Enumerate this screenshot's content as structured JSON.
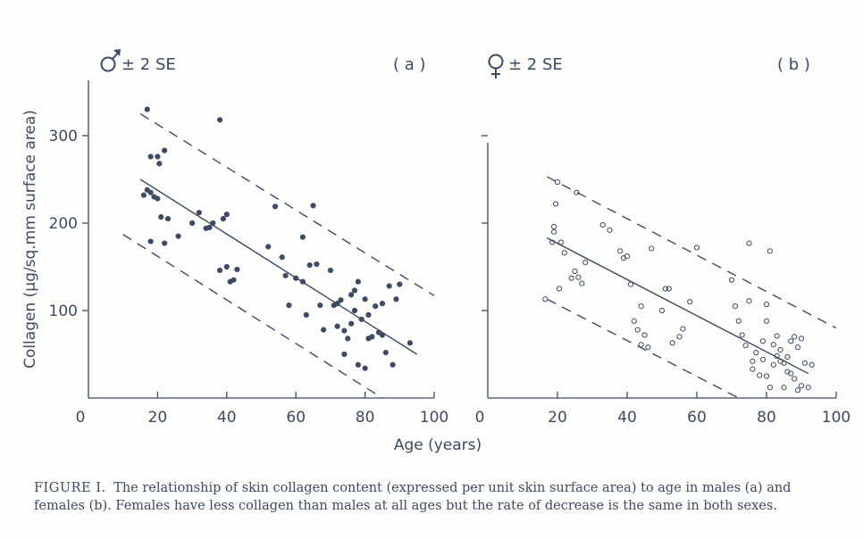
{
  "caption": {
    "lead": "FIGURE I.",
    "text": "The relationship of skin collagen content (expressed per unit skin surface area) to age in males (a) and females (b). Females have less collagen than males at all ages but the rate of decrease is the same in both sexes."
  },
  "colors": {
    "ink": "#3d4a63",
    "background": "#fdfdfb"
  },
  "chart_data": [
    {
      "type": "scatter",
      "panel_label": "( a )",
      "legend": "± 2 SE",
      "legend_symbol": "male-symbol",
      "marker": "filled-circle",
      "xlabel": "Age (years)",
      "ylabel": "Collagen (µg/sq.mm surface area)",
      "xlim": [
        0,
        100
      ],
      "ylim": [
        0,
        360
      ],
      "xticks": [
        0,
        20,
        40,
        60,
        80,
        100
      ],
      "yticks": [
        100,
        200,
        300
      ],
      "grid": false,
      "regression": {
        "x": [
          15,
          95
        ],
        "y": [
          250,
          50
        ]
      },
      "band_upper": {
        "x": [
          15,
          100
        ],
        "y": [
          325,
          117
        ]
      },
      "band_lower": {
        "x": [
          10,
          85
        ],
        "y": [
          187,
          0
        ]
      },
      "points": [
        [
          17,
          330
        ],
        [
          18,
          276
        ],
        [
          20,
          276
        ],
        [
          20.5,
          268
        ],
        [
          22,
          283
        ],
        [
          16,
          232
        ],
        [
          17,
          238
        ],
        [
          18,
          235
        ],
        [
          19,
          230
        ],
        [
          20,
          228
        ],
        [
          21,
          207
        ],
        [
          23,
          205
        ],
        [
          18,
          179
        ],
        [
          22,
          177
        ],
        [
          26,
          185
        ],
        [
          30,
          200
        ],
        [
          32,
          212
        ],
        [
          34,
          194
        ],
        [
          35,
          195
        ],
        [
          36,
          200
        ],
        [
          38,
          318
        ],
        [
          39,
          205
        ],
        [
          40,
          210
        ],
        [
          38,
          146
        ],
        [
          40,
          150
        ],
        [
          41,
          133
        ],
        [
          42,
          135
        ],
        [
          43,
          147
        ],
        [
          52,
          173
        ],
        [
          54,
          219
        ],
        [
          56,
          161
        ],
        [
          57,
          140
        ],
        [
          58,
          106
        ],
        [
          60,
          137
        ],
        [
          62,
          184
        ],
        [
          62,
          133
        ],
        [
          63,
          95
        ],
        [
          64,
          152
        ],
        [
          65,
          220
        ],
        [
          66,
          153
        ],
        [
          67,
          106
        ],
        [
          68,
          78
        ],
        [
          70,
          146
        ],
        [
          71,
          106
        ],
        [
          72,
          108
        ],
        [
          72,
          82
        ],
        [
          73,
          112
        ],
        [
          74,
          77
        ],
        [
          74,
          50
        ],
        [
          75,
          68
        ],
        [
          76,
          85
        ],
        [
          76,
          118
        ],
        [
          77,
          123
        ],
        [
          77,
          100
        ],
        [
          78,
          133
        ],
        [
          78,
          38
        ],
        [
          79,
          90
        ],
        [
          80,
          113
        ],
        [
          80,
          34
        ],
        [
          81,
          68
        ],
        [
          81,
          95
        ],
        [
          82,
          70
        ],
        [
          83,
          105
        ],
        [
          84,
          75
        ],
        [
          85,
          108
        ],
        [
          85,
          72
        ],
        [
          86,
          52
        ],
        [
          87,
          128
        ],
        [
          88,
          38
        ],
        [
          89,
          113
        ],
        [
          90,
          130
        ],
        [
          93,
          63
        ]
      ]
    },
    {
      "type": "scatter",
      "panel_label": "( b )",
      "legend": "± 2 SE",
      "legend_symbol": "female-symbol",
      "marker": "open-circle",
      "xlabel": "Age (years)",
      "ylabel": "",
      "xlim": [
        0,
        100
      ],
      "ylim": [
        0,
        360
      ],
      "xticks": [
        0,
        20,
        40,
        60,
        80,
        100
      ],
      "yticks": [
        100,
        200,
        300
      ],
      "grid": false,
      "regression": {
        "x": [
          17,
          92
        ],
        "y": [
          183,
          28
        ]
      },
      "band_upper": {
        "x": [
          17,
          100
        ],
        "y": [
          253,
          80
        ]
      },
      "band_lower": {
        "x": [
          17,
          72
        ],
        "y": [
          113,
          0
        ]
      },
      "points": [
        [
          16.5,
          113
        ],
        [
          18.5,
          178
        ],
        [
          19,
          196
        ],
        [
          19,
          190
        ],
        [
          19.5,
          222
        ],
        [
          20,
          247
        ],
        [
          21,
          178
        ],
        [
          20.5,
          125
        ],
        [
          22,
          166
        ],
        [
          24,
          137
        ],
        [
          25,
          145
        ],
        [
          25.5,
          235
        ],
        [
          26,
          138
        ],
        [
          27,
          131
        ],
        [
          28,
          155
        ],
        [
          33,
          198
        ],
        [
          35,
          192
        ],
        [
          38,
          168
        ],
        [
          39,
          160
        ],
        [
          40,
          162
        ],
        [
          41,
          130
        ],
        [
          42,
          88
        ],
        [
          43,
          78
        ],
        [
          44,
          105
        ],
        [
          44,
          61
        ],
        [
          45,
          72
        ],
        [
          46,
          58
        ],
        [
          47,
          171
        ],
        [
          50,
          100
        ],
        [
          51,
          125
        ],
        [
          52,
          125
        ],
        [
          53,
          63
        ],
        [
          55,
          70
        ],
        [
          56,
          79
        ],
        [
          58,
          110
        ],
        [
          60,
          172
        ],
        [
          70,
          135
        ],
        [
          71,
          105
        ],
        [
          72,
          88
        ],
        [
          73,
          72
        ],
        [
          74,
          60
        ],
        [
          75,
          111
        ],
        [
          75,
          177
        ],
        [
          76,
          42
        ],
        [
          76,
          33
        ],
        [
          77,
          52
        ],
        [
          78,
          26
        ],
        [
          79,
          65
        ],
        [
          79,
          44
        ],
        [
          80,
          107
        ],
        [
          80,
          88
        ],
        [
          80,
          25
        ],
        [
          81,
          168
        ],
        [
          81,
          12
        ],
        [
          82,
          38
        ],
        [
          82,
          61
        ],
        [
          83,
          71
        ],
        [
          83,
          48
        ],
        [
          84,
          42
        ],
        [
          84,
          55
        ],
        [
          85,
          40
        ],
        [
          85,
          12
        ],
        [
          86,
          30
        ],
        [
          86,
          47
        ],
        [
          87,
          65
        ],
        [
          87,
          28
        ],
        [
          88,
          70
        ],
        [
          88,
          22
        ],
        [
          89,
          58
        ],
        [
          89,
          9
        ],
        [
          90,
          68
        ],
        [
          90,
          14
        ],
        [
          91,
          40
        ],
        [
          92,
          12
        ],
        [
          93,
          38
        ]
      ]
    }
  ]
}
